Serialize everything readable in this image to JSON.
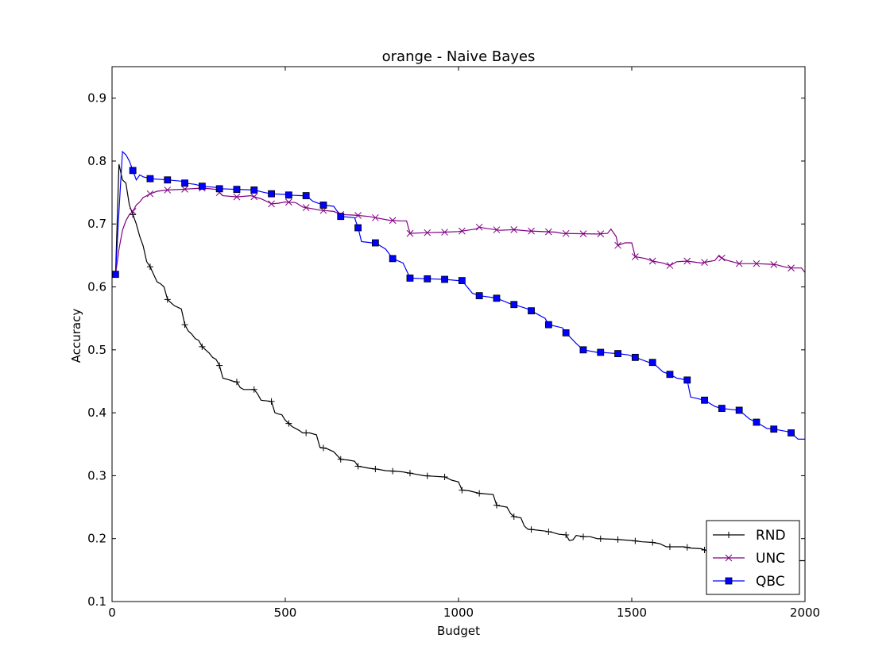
{
  "chart_data": {
    "type": "line",
    "title": "orange - Naive Bayes",
    "xlabel": "Budget",
    "ylabel": "Accuracy",
    "xlim": [
      0,
      2000
    ],
    "ylim": [
      0.1,
      0.95
    ],
    "x_ticks": [
      0,
      500,
      1000,
      1500,
      2000
    ],
    "x_tick_labels": [
      "0",
      "500",
      "1000",
      "1500",
      "2000"
    ],
    "y_ticks": [
      0.1,
      0.2,
      0.3,
      0.4,
      0.5,
      0.6,
      0.7,
      0.8,
      0.9
    ],
    "y_tick_labels": [
      "0.1",
      "0.2",
      "0.3",
      "0.4",
      "0.5",
      "0.6",
      "0.7",
      "0.8",
      "0.9"
    ],
    "grid": false,
    "legend_position": "bottom-right",
    "series": [
      {
        "name": "RND",
        "color": "#000000",
        "marker": "plus",
        "points": [
          [
            10,
            0.62
          ],
          [
            20,
            0.795
          ],
          [
            30,
            0.77
          ],
          [
            40,
            0.765
          ],
          [
            50,
            0.73
          ],
          [
            60,
            0.715
          ],
          [
            70,
            0.7
          ],
          [
            80,
            0.68
          ],
          [
            90,
            0.665
          ],
          [
            100,
            0.64
          ],
          [
            110,
            0.632
          ],
          [
            120,
            0.62
          ],
          [
            130,
            0.608
          ],
          [
            140,
            0.605
          ],
          [
            150,
            0.6
          ],
          [
            160,
            0.58
          ],
          [
            170,
            0.575
          ],
          [
            180,
            0.57
          ],
          [
            200,
            0.565
          ],
          [
            210,
            0.54
          ],
          [
            220,
            0.53
          ],
          [
            230,
            0.525
          ],
          [
            240,
            0.518
          ],
          [
            250,
            0.515
          ],
          [
            260,
            0.505
          ],
          [
            270,
            0.5
          ],
          [
            280,
            0.495
          ],
          [
            290,
            0.488
          ],
          [
            300,
            0.485
          ],
          [
            310,
            0.475
          ],
          [
            320,
            0.455
          ],
          [
            340,
            0.452
          ],
          [
            350,
            0.45
          ],
          [
            360,
            0.449
          ],
          [
            370,
            0.44
          ],
          [
            380,
            0.437
          ],
          [
            410,
            0.437
          ],
          [
            420,
            0.43
          ],
          [
            430,
            0.42
          ],
          [
            460,
            0.418
          ],
          [
            470,
            0.4
          ],
          [
            480,
            0.398
          ],
          [
            490,
            0.397
          ],
          [
            500,
            0.388
          ],
          [
            510,
            0.383
          ],
          [
            520,
            0.378
          ],
          [
            540,
            0.372
          ],
          [
            550,
            0.368
          ],
          [
            570,
            0.368
          ],
          [
            590,
            0.365
          ],
          [
            600,
            0.345
          ],
          [
            620,
            0.343
          ],
          [
            640,
            0.338
          ],
          [
            660,
            0.326
          ],
          [
            680,
            0.325
          ],
          [
            700,
            0.323
          ],
          [
            710,
            0.315
          ],
          [
            740,
            0.312
          ],
          [
            770,
            0.31
          ],
          [
            790,
            0.308
          ],
          [
            820,
            0.307
          ],
          [
            840,
            0.306
          ],
          [
            860,
            0.304
          ],
          [
            880,
            0.302
          ],
          [
            900,
            0.3
          ],
          [
            930,
            0.299
          ],
          [
            960,
            0.298
          ],
          [
            980,
            0.293
          ],
          [
            1000,
            0.29
          ],
          [
            1010,
            0.277
          ],
          [
            1030,
            0.276
          ],
          [
            1060,
            0.272
          ],
          [
            1100,
            0.27
          ],
          [
            1110,
            0.253
          ],
          [
            1140,
            0.25
          ],
          [
            1150,
            0.24
          ],
          [
            1160,
            0.235
          ],
          [
            1180,
            0.233
          ],
          [
            1190,
            0.22
          ],
          [
            1200,
            0.215
          ],
          [
            1220,
            0.214
          ],
          [
            1250,
            0.212
          ],
          [
            1270,
            0.21
          ],
          [
            1290,
            0.207
          ],
          [
            1310,
            0.206
          ],
          [
            1320,
            0.197
          ],
          [
            1330,
            0.198
          ],
          [
            1340,
            0.205
          ],
          [
            1360,
            0.203
          ],
          [
            1380,
            0.203
          ],
          [
            1400,
            0.2
          ],
          [
            1450,
            0.199
          ],
          [
            1500,
            0.197
          ],
          [
            1530,
            0.195
          ],
          [
            1560,
            0.194
          ],
          [
            1580,
            0.192
          ],
          [
            1600,
            0.187
          ],
          [
            1650,
            0.187
          ],
          [
            1670,
            0.185
          ],
          [
            1700,
            0.184
          ],
          [
            1720,
            0.18
          ],
          [
            1800,
            0.175
          ],
          [
            1850,
            0.172
          ],
          [
            1920,
            0.168
          ],
          [
            1980,
            0.165
          ],
          [
            2000,
            0.165
          ]
        ],
        "markers_x": [
          10,
          60,
          110,
          160,
          210,
          260,
          310,
          360,
          410,
          460,
          510,
          560,
          610,
          660,
          710,
          760,
          810,
          860,
          910,
          960,
          1010,
          1060,
          1110,
          1160,
          1210,
          1260,
          1310,
          1360,
          1410,
          1460,
          1510,
          1560,
          1610,
          1660,
          1710,
          1760,
          1810,
          1860,
          1910,
          1960
        ]
      },
      {
        "name": "UNC",
        "color": "#800080",
        "marker": "x",
        "points": [
          [
            10,
            0.62
          ],
          [
            20,
            0.66
          ],
          [
            30,
            0.69
          ],
          [
            40,
            0.705
          ],
          [
            50,
            0.715
          ],
          [
            60,
            0.72
          ],
          [
            70,
            0.73
          ],
          [
            80,
            0.735
          ],
          [
            90,
            0.742
          ],
          [
            100,
            0.745
          ],
          [
            110,
            0.748
          ],
          [
            130,
            0.752
          ],
          [
            160,
            0.754
          ],
          [
            200,
            0.755
          ],
          [
            260,
            0.757
          ],
          [
            300,
            0.755
          ],
          [
            310,
            0.75
          ],
          [
            320,
            0.745
          ],
          [
            360,
            0.743
          ],
          [
            400,
            0.745
          ],
          [
            430,
            0.74
          ],
          [
            450,
            0.735
          ],
          [
            460,
            0.732
          ],
          [
            480,
            0.733
          ],
          [
            500,
            0.735
          ],
          [
            530,
            0.734
          ],
          [
            550,
            0.727
          ],
          [
            570,
            0.725
          ],
          [
            600,
            0.722
          ],
          [
            640,
            0.72
          ],
          [
            660,
            0.715
          ],
          [
            700,
            0.714
          ],
          [
            740,
            0.712
          ],
          [
            760,
            0.71
          ],
          [
            800,
            0.706
          ],
          [
            830,
            0.705
          ],
          [
            850,
            0.705
          ],
          [
            860,
            0.685
          ],
          [
            900,
            0.686
          ],
          [
            960,
            0.687
          ],
          [
            1000,
            0.688
          ],
          [
            1050,
            0.692
          ],
          [
            1060,
            0.695
          ],
          [
            1080,
            0.693
          ],
          [
            1120,
            0.69
          ],
          [
            1160,
            0.691
          ],
          [
            1200,
            0.689
          ],
          [
            1280,
            0.687
          ],
          [
            1300,
            0.685
          ],
          [
            1400,
            0.684
          ],
          [
            1430,
            0.685
          ],
          [
            1440,
            0.692
          ],
          [
            1455,
            0.68
          ],
          [
            1460,
            0.666
          ],
          [
            1480,
            0.67
          ],
          [
            1500,
            0.67
          ],
          [
            1510,
            0.648
          ],
          [
            1540,
            0.645
          ],
          [
            1560,
            0.641
          ],
          [
            1590,
            0.638
          ],
          [
            1610,
            0.634
          ],
          [
            1630,
            0.64
          ],
          [
            1660,
            0.641
          ],
          [
            1700,
            0.638
          ],
          [
            1740,
            0.642
          ],
          [
            1750,
            0.649
          ],
          [
            1770,
            0.643
          ],
          [
            1790,
            0.64
          ],
          [
            1810,
            0.637
          ],
          [
            1860,
            0.637
          ],
          [
            1900,
            0.636
          ],
          [
            1920,
            0.635
          ],
          [
            1940,
            0.632
          ],
          [
            1960,
            0.63
          ],
          [
            1990,
            0.63
          ],
          [
            2000,
            0.623
          ]
        ],
        "markers_x": [
          10,
          60,
          110,
          160,
          210,
          260,
          310,
          360,
          410,
          460,
          510,
          560,
          610,
          660,
          710,
          760,
          810,
          860,
          910,
          960,
          1010,
          1060,
          1110,
          1160,
          1210,
          1260,
          1310,
          1360,
          1410,
          1460,
          1510,
          1560,
          1610,
          1660,
          1710,
          1760,
          1810,
          1860,
          1910,
          1960
        ]
      },
      {
        "name": "QBC",
        "color": "#0000ff",
        "marker": "square",
        "points": [
          [
            10,
            0.62
          ],
          [
            20,
            0.72
          ],
          [
            30,
            0.815
          ],
          [
            40,
            0.81
          ],
          [
            50,
            0.8
          ],
          [
            60,
            0.785
          ],
          [
            70,
            0.77
          ],
          [
            80,
            0.778
          ],
          [
            90,
            0.775
          ],
          [
            110,
            0.772
          ],
          [
            160,
            0.77
          ],
          [
            200,
            0.768
          ],
          [
            210,
            0.765
          ],
          [
            240,
            0.763
          ],
          [
            260,
            0.76
          ],
          [
            300,
            0.758
          ],
          [
            310,
            0.756
          ],
          [
            360,
            0.755
          ],
          [
            410,
            0.754
          ],
          [
            440,
            0.75
          ],
          [
            460,
            0.748
          ],
          [
            500,
            0.747
          ],
          [
            510,
            0.746
          ],
          [
            550,
            0.745
          ],
          [
            560,
            0.745
          ],
          [
            580,
            0.736
          ],
          [
            610,
            0.73
          ],
          [
            640,
            0.728
          ],
          [
            660,
            0.712
          ],
          [
            700,
            0.71
          ],
          [
            710,
            0.694
          ],
          [
            720,
            0.672
          ],
          [
            750,
            0.67
          ],
          [
            760,
            0.67
          ],
          [
            790,
            0.66
          ],
          [
            810,
            0.645
          ],
          [
            840,
            0.638
          ],
          [
            860,
            0.614
          ],
          [
            900,
            0.613
          ],
          [
            960,
            0.612
          ],
          [
            1000,
            0.61
          ],
          [
            1010,
            0.61
          ],
          [
            1040,
            0.59
          ],
          [
            1060,
            0.586
          ],
          [
            1100,
            0.583
          ],
          [
            1110,
            0.582
          ],
          [
            1150,
            0.573
          ],
          [
            1160,
            0.572
          ],
          [
            1200,
            0.565
          ],
          [
            1210,
            0.562
          ],
          [
            1250,
            0.55
          ],
          [
            1260,
            0.54
          ],
          [
            1300,
            0.535
          ],
          [
            1310,
            0.527
          ],
          [
            1340,
            0.51
          ],
          [
            1360,
            0.5
          ],
          [
            1400,
            0.496
          ],
          [
            1410,
            0.496
          ],
          [
            1460,
            0.494
          ],
          [
            1490,
            0.492
          ],
          [
            1510,
            0.488
          ],
          [
            1550,
            0.48
          ],
          [
            1560,
            0.48
          ],
          [
            1590,
            0.465
          ],
          [
            1610,
            0.461
          ],
          [
            1630,
            0.455
          ],
          [
            1660,
            0.452
          ],
          [
            1670,
            0.425
          ],
          [
            1710,
            0.42
          ],
          [
            1740,
            0.41
          ],
          [
            1760,
            0.407
          ],
          [
            1790,
            0.405
          ],
          [
            1810,
            0.404
          ],
          [
            1840,
            0.39
          ],
          [
            1860,
            0.385
          ],
          [
            1890,
            0.375
          ],
          [
            1910,
            0.374
          ],
          [
            1950,
            0.37
          ],
          [
            1960,
            0.368
          ],
          [
            1980,
            0.358
          ],
          [
            2000,
            0.358
          ]
        ],
        "markers_x": [
          10,
          60,
          110,
          160,
          210,
          260,
          310,
          360,
          410,
          460,
          510,
          560,
          610,
          660,
          710,
          760,
          810,
          860,
          910,
          960,
          1010,
          1060,
          1110,
          1160,
          1210,
          1260,
          1310,
          1360,
          1410,
          1460,
          1510,
          1560,
          1610,
          1660,
          1710,
          1760,
          1810,
          1860,
          1910,
          1960
        ]
      }
    ]
  }
}
